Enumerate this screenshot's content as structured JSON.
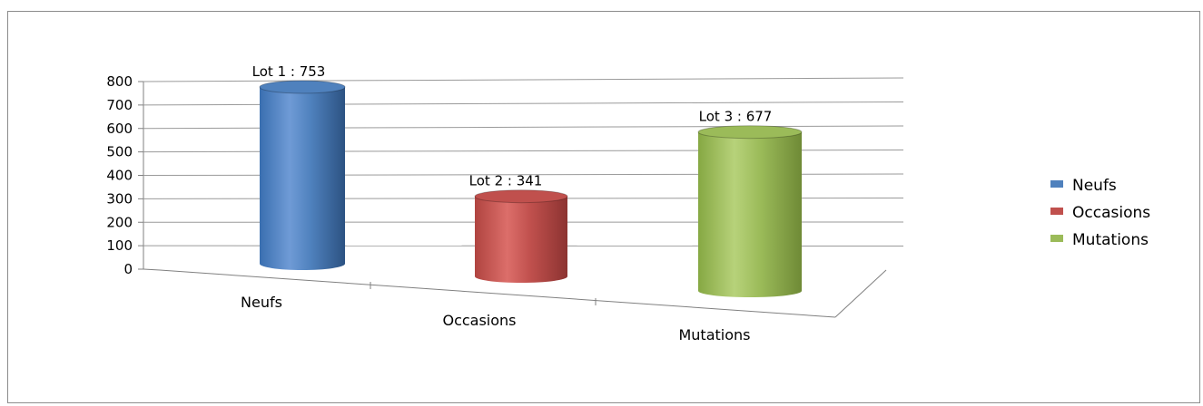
{
  "chart_data": {
    "type": "bar",
    "style": "3d-cylinder",
    "categories": [
      "Neufs",
      "Occasions",
      "Mutations"
    ],
    "values": [
      753,
      341,
      677
    ],
    "data_labels": [
      "Lot 1 : 753",
      "Lot 2 : 341",
      "Lot 3 : 677"
    ],
    "colors": [
      "#4f81bd",
      "#c0504d",
      "#9bbb59"
    ],
    "legend": [
      "Neufs",
      "Occasions",
      "Mutations"
    ],
    "legend_position": "right",
    "yticks": [
      "0",
      "100",
      "200",
      "300",
      "400",
      "500",
      "600",
      "700",
      "800"
    ],
    "ylim": [
      0,
      800
    ],
    "grid": true,
    "title": "",
    "xlabel": "",
    "ylabel": ""
  }
}
